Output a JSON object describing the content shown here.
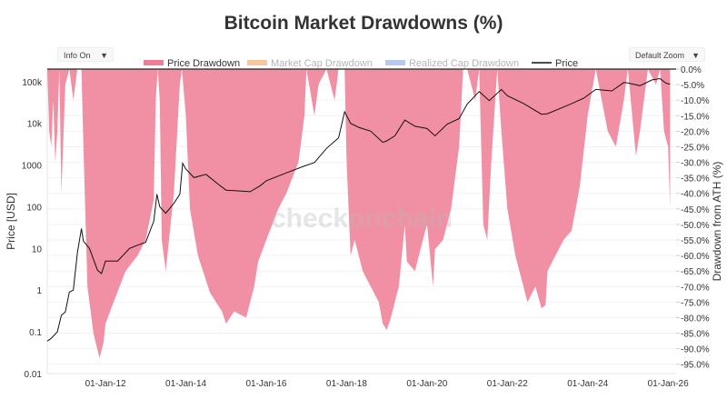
{
  "colors": {
    "price_drawdown": "#ee7d94",
    "market_cap_drawdown": "#f5c79a",
    "realized_cap_drawdown": "#b9c9ee",
    "price_line": "#111111",
    "grid": "#f2f2f2"
  },
  "controls": {
    "info_label": "Info On",
    "zoom_label": "Default Zoom"
  },
  "watermark": "checkonchain",
  "chart_data": {
    "type": "area",
    "title": "Bitcoin Market Drawdowns (%)",
    "ylabel": "Price [USD]",
    "y2label": "Drawdown from ATH (%)",
    "y_scale": "log",
    "ylim": [
      0.01,
      200000
    ],
    "y2lim": [
      -98,
      0
    ],
    "xlim": [
      2010.55,
      2026.2
    ],
    "x_tick_labels": [
      "01-Jan-12",
      "01-Jan-14",
      "01-Jan-16",
      "01-Jan-18",
      "01-Jan-20",
      "01-Jan-22",
      "01-Jan-24",
      "01-Jan-26"
    ],
    "x_tick_values": [
      2012,
      2014,
      2016,
      2018,
      2020,
      2022,
      2024,
      2026
    ],
    "y_tick_labels": [
      "0.01",
      "0.1",
      "1",
      "10",
      "100",
      "1000",
      "10k",
      "100k"
    ],
    "y_tick_values": [
      0.01,
      0.1,
      1,
      10,
      100,
      1000,
      10000,
      100000
    ],
    "y2_tick_labels": [
      "0.0%",
      "-5.0%",
      "-10.0%",
      "-15.0%",
      "-20.0%",
      "-25.0%",
      "-30.0%",
      "-35.0%",
      "-40.0%",
      "-45.0%",
      "-50.0%",
      "-55.0%",
      "-60.0%",
      "-65.0%",
      "-70.0%",
      "-75.0%",
      "-80.0%",
      "-85.0%",
      "-90.0%",
      "-95.0%"
    ],
    "y2_tick_values": [
      0,
      -5,
      -10,
      -15,
      -20,
      -25,
      -30,
      -35,
      -40,
      -45,
      -50,
      -55,
      -60,
      -65,
      -70,
      -75,
      -80,
      -85,
      -90,
      -95
    ],
    "legend": [
      {
        "name": "Price Drawdown",
        "active": true
      },
      {
        "name": "Market Cap Drawdown",
        "active": false
      },
      {
        "name": "Realized Cap Drawdown",
        "active": false
      },
      {
        "name": "Price",
        "active": true
      }
    ],
    "series": [
      {
        "name": "Price Drawdown",
        "axis": "y2",
        "x": [
          2010.55,
          2010.6,
          2010.65,
          2010.7,
          2010.75,
          2010.8,
          2010.85,
          2010.9,
          2011.0,
          2011.1,
          2011.2,
          2011.3,
          2011.4,
          2011.45,
          2011.55,
          2011.7,
          2011.85,
          2011.95,
          2012.0,
          2012.2,
          2012.5,
          2012.8,
          2013.0,
          2013.2,
          2013.25,
          2013.3,
          2013.35,
          2013.4,
          2013.5,
          2013.7,
          2013.85,
          2013.9,
          2014.0,
          2014.1,
          2014.3,
          2014.6,
          2014.9,
          2015.0,
          2015.2,
          2015.5,
          2015.7,
          2015.8,
          2016.0,
          2016.3,
          2016.5,
          2016.8,
          2016.95,
          2017.0,
          2017.2,
          2017.3,
          2017.5,
          2017.7,
          2017.8,
          2017.95,
          2018.0,
          2018.1,
          2018.2,
          2018.4,
          2018.6,
          2018.8,
          2018.9,
          2019.0,
          2019.1,
          2019.3,
          2019.45,
          2019.5,
          2019.7,
          2019.9,
          2020.0,
          2020.15,
          2020.2,
          2020.4,
          2020.6,
          2020.8,
          2020.9,
          2021.0,
          2021.2,
          2021.3,
          2021.4,
          2021.5,
          2021.6,
          2021.75,
          2021.85,
          2022.0,
          2022.2,
          2022.4,
          2022.5,
          2022.7,
          2022.85,
          2022.95,
          2023.0,
          2023.2,
          2023.4,
          2023.6,
          2023.8,
          2024.0,
          2024.2,
          2024.5,
          2024.7,
          2024.9,
          2025.0,
          2025.2,
          2025.3,
          2025.5,
          2025.7,
          2025.8,
          2025.9,
          2026.0,
          2026.05
        ],
        "values": [
          0,
          -20,
          -25,
          -10,
          -30,
          -20,
          0,
          -40,
          -5,
          0,
          -10,
          0,
          0,
          -25,
          -70,
          -85,
          -93,
          -88,
          -82,
          -75,
          -65,
          -60,
          -55,
          -42,
          -10,
          0,
          -10,
          -55,
          -65,
          -40,
          -5,
          0,
          -15,
          -45,
          -60,
          -72,
          -78,
          -82,
          -78,
          -80,
          -70,
          -62,
          -55,
          -45,
          -40,
          -30,
          -15,
          0,
          -15,
          -5,
          0,
          -10,
          0,
          0,
          -30,
          -60,
          -55,
          -65,
          -70,
          -75,
          -82,
          -84,
          -80,
          -70,
          -50,
          -62,
          -65,
          -55,
          -50,
          -70,
          -58,
          -55,
          -45,
          -25,
          0,
          0,
          -10,
          0,
          -50,
          -55,
          -30,
          0,
          -20,
          -45,
          -60,
          -70,
          -75,
          -70,
          -77,
          -76,
          -65,
          -60,
          -55,
          -52,
          -38,
          -15,
          0,
          -20,
          -25,
          -10,
          0,
          -28,
          -20,
          0,
          -5,
          0,
          -20,
          -25,
          -45
        ]
      },
      {
        "name": "Price",
        "axis": "y",
        "x": [
          2010.55,
          2010.65,
          2010.8,
          2010.9,
          2011.0,
          2011.1,
          2011.2,
          2011.3,
          2011.4,
          2011.45,
          2011.6,
          2011.8,
          2011.9,
          2012.0,
          2012.3,
          2012.6,
          2012.8,
          2013.0,
          2013.2,
          2013.28,
          2013.35,
          2013.5,
          2013.7,
          2013.85,
          2013.92,
          2014.0,
          2014.2,
          2014.5,
          2014.8,
          2015.0,
          2015.3,
          2015.6,
          2015.85,
          2016.0,
          2016.5,
          2016.95,
          2017.2,
          2017.5,
          2017.8,
          2017.95,
          2018.1,
          2018.3,
          2018.6,
          2018.9,
          2019.0,
          2019.2,
          2019.45,
          2019.7,
          2020.0,
          2020.2,
          2020.5,
          2020.8,
          2021.0,
          2021.3,
          2021.55,
          2021.85,
          2022.0,
          2022.4,
          2022.85,
          2023.0,
          2023.5,
          2023.9,
          2024.2,
          2024.6,
          2024.9,
          2025.0,
          2025.3,
          2025.6,
          2025.8,
          2025.95,
          2026.05
        ],
        "values": [
          0.06,
          0.07,
          0.1,
          0.25,
          0.3,
          0.9,
          1.0,
          8,
          30,
          15,
          10,
          3,
          2.5,
          5,
          5,
          10,
          12,
          14,
          45,
          200,
          100,
          70,
          120,
          200,
          1100,
          800,
          500,
          600,
          350,
          250,
          240,
          230,
          320,
          420,
          650,
          950,
          1150,
          2500,
          4500,
          19000,
          10000,
          8000,
          6500,
          3500,
          3800,
          5000,
          12000,
          8500,
          7500,
          5000,
          9500,
          13000,
          29000,
          58000,
          35000,
          65000,
          46000,
          30000,
          16500,
          17000,
          27000,
          40000,
          65000,
          60000,
          95000,
          93000,
          80000,
          110000,
          118000,
          92000,
          87000
        ]
      }
    ]
  }
}
